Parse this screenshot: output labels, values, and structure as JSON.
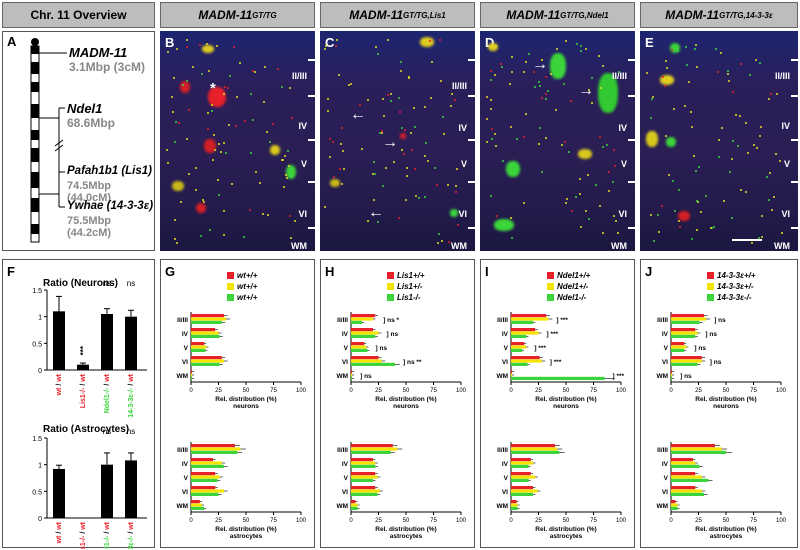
{
  "headers": [
    "Chr. 11 Overview",
    "MADM-11",
    "MADM-11",
    "MADM-11",
    "MADM-11"
  ],
  "header_sups": [
    "",
    "GT/TG",
    "GT/TG,Lis1",
    "GT/TG,Ndel1",
    "GT/TG,14-3-3ε"
  ],
  "panel_letters": [
    "A",
    "B",
    "C",
    "D",
    "E",
    "F",
    "G",
    "H",
    "I",
    "J"
  ],
  "chromosome": {
    "genes": [
      {
        "name": "MADM-11",
        "pos": "3.1Mbp (3cM)"
      },
      {
        "name": "Ndel1",
        "pos": "68.6Mbp"
      },
      {
        "name": "Pafah1b1 (Lis1)",
        "pos": "74.5Mbp (44.0cM)"
      },
      {
        "name": "Ywhae (14-3-3ε)",
        "pos": "75.5Mbp (44.2cM)"
      }
    ]
  },
  "layers": [
    "II/III",
    "IV",
    "V",
    "VI",
    "WM"
  ],
  "colors": {
    "red": "#e8202a",
    "yellow": "#f5e400",
    "green": "#3bd53b",
    "header": "#bdbdbd"
  },
  "ratio_panels": {
    "neurons_title": "Ratio (Neurons)",
    "astro_title": "Ratio (Astrocytes)",
    "ylim": [
      0,
      1.5
    ],
    "yticks": [
      "0",
      "0.5",
      "1",
      "1.5"
    ],
    "categories": [
      "wt / wt",
      "Lis1-/- / wt",
      "Ndel1-/- / wt",
      "14-3-3ε-/- / wt"
    ],
    "neurons": [
      1.1,
      0.1,
      1.05,
      1.0
    ],
    "neuron_err": [
      0.28,
      0.03,
      0.1,
      0.12
    ],
    "neuron_sig": [
      "",
      "***",
      "ns",
      "ns"
    ],
    "astro": [
      0.92,
      0,
      1.0,
      1.08
    ],
    "astro_err": [
      0.07,
      0,
      0.22,
      0.14
    ],
    "astro_sig": [
      "",
      "",
      "ns",
      "ns"
    ]
  },
  "dist_axis": {
    "xticks": [
      "0",
      "25",
      "50",
      "75",
      "100"
    ],
    "xlabel": "Rel. distribution (%)",
    "neurons_label": "neurons",
    "astro_label": "astrocytes"
  },
  "chart_data": [
    {
      "type": "bar",
      "panel": "G",
      "legend": [
        "wt+/+",
        "wt+/+",
        "wt+/+"
      ],
      "neurons": [
        [
          30,
          32,
          28
        ],
        [
          22,
          25,
          26
        ],
        [
          12,
          14,
          13
        ],
        [
          28,
          30,
          26
        ],
        [
          1,
          1,
          1
        ]
      ],
      "neuron_sig": [
        "",
        "",
        "",
        "",
        ""
      ],
      "astro": [
        [
          40,
          45,
          42
        ],
        [
          20,
          28,
          30
        ],
        [
          22,
          26,
          24
        ],
        [
          22,
          30,
          25
        ],
        [
          8,
          10,
          12
        ]
      ]
    },
    {
      "type": "bar",
      "panel": "H",
      "legend": [
        "Lis1+/+",
        "Lis1+/-",
        "Lis1-/-"
      ],
      "neurons": [
        [
          22,
          20,
          10
        ],
        [
          20,
          25,
          22
        ],
        [
          12,
          14,
          15
        ],
        [
          25,
          28,
          40
        ],
        [
          1,
          1,
          1
        ]
      ],
      "neuron_sig": [
        "ns  *",
        "ns",
        "ns",
        "ns  **",
        "ns"
      ],
      "astro": [
        [
          38,
          42,
          36
        ],
        [
          20,
          22,
          22
        ],
        [
          22,
          24,
          20
        ],
        [
          22,
          26,
          24
        ],
        [
          4,
          6,
          6
        ]
      ]
    },
    {
      "type": "bar",
      "panel": "I",
      "legend": [
        "Ndel1+/+",
        "Ndel1+/-",
        "Ndel1-/-"
      ],
      "neurons": [
        [
          32,
          34,
          20
        ],
        [
          22,
          25,
          14
        ],
        [
          12,
          14,
          10
        ],
        [
          26,
          28,
          15
        ],
        [
          1,
          1,
          85
        ]
      ],
      "neuron_sig": [
        "***",
        "***",
        "***",
        "***",
        "***"
      ],
      "astro": [
        [
          40,
          42,
          44
        ],
        [
          18,
          20,
          16
        ],
        [
          18,
          22,
          16
        ],
        [
          20,
          24,
          20
        ],
        [
          5,
          6,
          6
        ]
      ]
    },
    {
      "type": "bar",
      "panel": "J",
      "legend": [
        "14-3-3ε+/+",
        "14-3-3ε+/-",
        "14-3-3ε-/-"
      ],
      "neurons": [
        [
          30,
          32,
          26
        ],
        [
          22,
          24,
          22
        ],
        [
          12,
          14,
          12
        ],
        [
          28,
          28,
          24
        ],
        [
          1,
          1,
          1
        ]
      ],
      "neuron_sig": [
        "ns",
        "ns",
        "ns",
        "ns",
        "ns"
      ],
      "astro": [
        [
          40,
          46,
          50
        ],
        [
          20,
          22,
          26
        ],
        [
          22,
          28,
          34
        ],
        [
          22,
          28,
          30
        ],
        [
          4,
          6,
          6
        ]
      ]
    }
  ]
}
